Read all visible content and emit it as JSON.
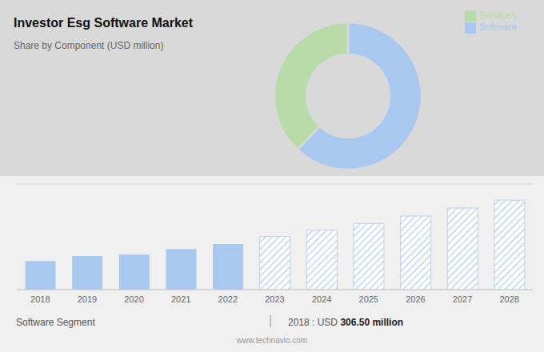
{
  "chart_data": [
    {
      "type": "pie",
      "title": "Investor Esg Software Market",
      "subtitle": "Share by Component (USD million)",
      "categories": [
        "Software",
        "Services"
      ],
      "values": [
        62,
        38
      ],
      "colors": [
        "#a8c8f0",
        "#b8dba8"
      ],
      "legend": "upper right"
    },
    {
      "type": "bar",
      "categories": [
        "2018",
        "2019",
        "2020",
        "2021",
        "2022",
        "2023",
        "2024",
        "2025",
        "2026",
        "2027",
        "2028"
      ],
      "series": [
        {
          "color": "#a8c8f0",
          "values": [
            306.5,
            360,
            375,
            435,
            490,
            null,
            null,
            null,
            null,
            null,
            null
          ]
        },
        {
          "color": "#a8c8f0",
          "line_style": "hatched",
          "values": [
            null,
            null,
            null,
            null,
            null,
            570,
            640,
            710,
            790,
            875,
            960
          ]
        }
      ],
      "ylim": [
        0,
        1132.8
      ],
      "yticks": [
        0,
        226.56,
        453.12,
        679.68,
        906.24,
        1132.8
      ],
      "grid": true,
      "tick_labels": "x",
      "annotations": [
        "Software Segment",
        "|",
        "2018 : USD ",
        "306.50 million",
        "www.technavio.com"
      ]
    }
  ]
}
